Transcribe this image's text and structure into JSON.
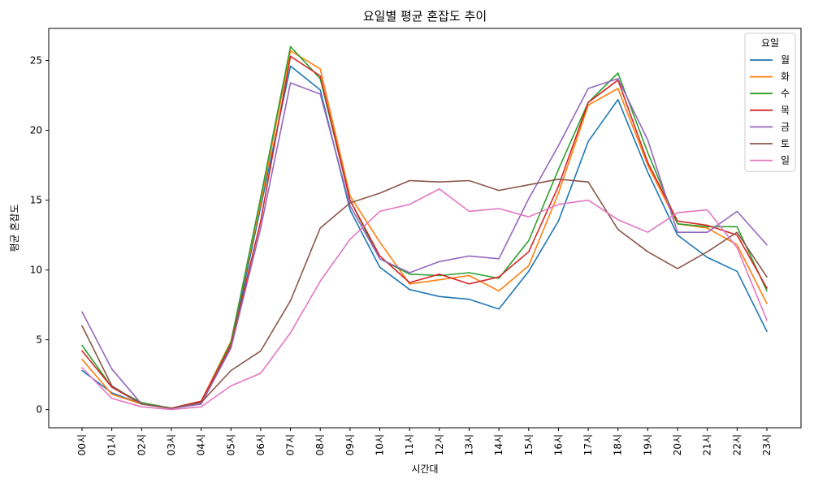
{
  "chart_data": {
    "type": "line",
    "title": "요일별 평균 혼잡도 추이",
    "xlabel": "시간대",
    "ylabel": "평균 혼잡도",
    "categories": [
      "00시",
      "01시",
      "02시",
      "03시",
      "04시",
      "05시",
      "06시",
      "07시",
      "08시",
      "09시",
      "10시",
      "11시",
      "12시",
      "13시",
      "14시",
      "15시",
      "16시",
      "17시",
      "18시",
      "19시",
      "20시",
      "21시",
      "22시",
      "23시"
    ],
    "ylim": [
      -1.3,
      27.3
    ],
    "yticks": [
      0,
      5,
      10,
      15,
      20,
      25
    ],
    "grid": false,
    "legend": {
      "title": "요일",
      "position": "top-right"
    },
    "series": [
      {
        "name": "월",
        "color": "#1f77b4",
        "values": [
          2.8,
          1.2,
          0.4,
          0.1,
          0.4,
          4.5,
          14.5,
          24.6,
          22.9,
          14.3,
          10.2,
          8.6,
          8.1,
          7.9,
          7.2,
          9.9,
          13.5,
          19.2,
          22.2,
          17.0,
          12.5,
          10.9,
          9.9,
          5.6
        ]
      },
      {
        "name": "화",
        "color": "#ff7f0e",
        "values": [
          3.6,
          1.1,
          0.4,
          0.1,
          0.6,
          4.9,
          14.8,
          25.7,
          24.4,
          15.3,
          12.0,
          9.0,
          9.3,
          9.6,
          8.5,
          10.3,
          15.5,
          21.8,
          23.0,
          17.5,
          13.3,
          13.0,
          11.8,
          7.6
        ]
      },
      {
        "name": "수",
        "color": "#2ca02c",
        "values": [
          4.6,
          1.6,
          0.5,
          0.1,
          0.5,
          4.8,
          15.2,
          26.0,
          23.7,
          15.0,
          10.8,
          9.7,
          9.6,
          9.8,
          9.4,
          12.1,
          17.2,
          22.0,
          24.1,
          18.4,
          13.3,
          13.1,
          13.1,
          8.5
        ]
      },
      {
        "name": "목",
        "color": "#d62728",
        "values": [
          4.2,
          1.6,
          0.4,
          0.1,
          0.6,
          4.6,
          13.5,
          25.3,
          23.9,
          15.0,
          11.0,
          9.1,
          9.7,
          9.0,
          9.5,
          11.3,
          16.0,
          22.0,
          23.6,
          17.7,
          13.5,
          13.2,
          12.5,
          8.7
        ]
      },
      {
        "name": "금",
        "color": "#9467bd",
        "values": [
          7.0,
          2.9,
          0.4,
          0.1,
          0.4,
          4.4,
          13.0,
          23.4,
          22.6,
          14.6,
          10.8,
          9.8,
          10.6,
          11.0,
          10.8,
          15.1,
          18.9,
          23.0,
          23.7,
          19.3,
          12.7,
          12.7,
          14.2,
          11.8
        ]
      },
      {
        "name": "토",
        "color": "#8c564b",
        "values": [
          6.0,
          1.7,
          0.4,
          0.1,
          0.5,
          2.8,
          4.2,
          7.8,
          13.0,
          14.8,
          15.5,
          16.4,
          16.3,
          16.4,
          15.7,
          16.1,
          16.5,
          16.3,
          12.9,
          11.3,
          10.1,
          11.3,
          12.7,
          9.5
        ]
      },
      {
        "name": "일",
        "color": "#e377c2",
        "values": [
          3.0,
          0.8,
          0.2,
          0.0,
          0.2,
          1.7,
          2.6,
          5.5,
          9.2,
          12.2,
          14.2,
          14.7,
          15.8,
          14.2,
          14.4,
          13.8,
          14.7,
          15.0,
          13.6,
          12.7,
          14.1,
          14.3,
          11.6,
          6.4
        ]
      }
    ]
  }
}
